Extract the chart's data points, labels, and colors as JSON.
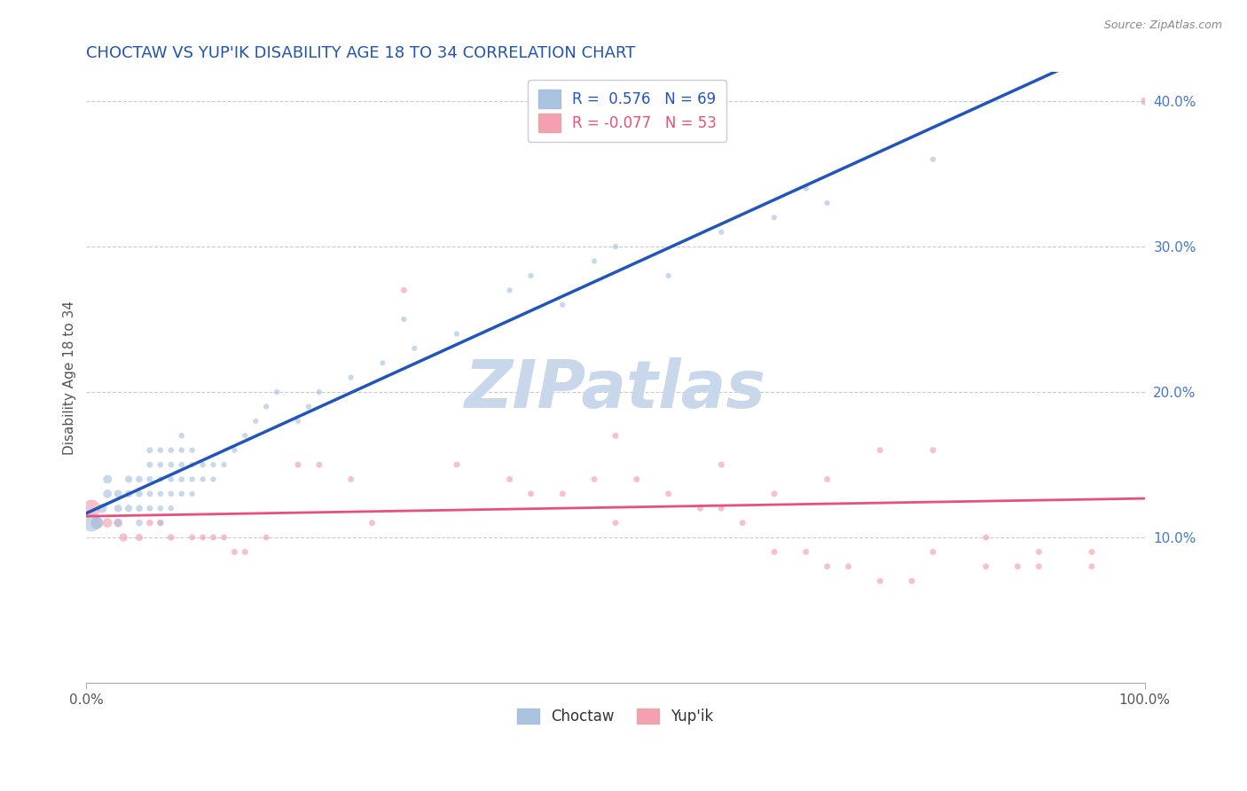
{
  "title": "CHOCTAW VS YUP'IK DISABILITY AGE 18 TO 34 CORRELATION CHART",
  "source_text": "Source: ZipAtlas.com",
  "ylabel": "Disability Age 18 to 34",
  "choctaw_R": 0.576,
  "choctaw_N": 69,
  "yupik_R": -0.077,
  "yupik_N": 53,
  "choctaw_color": "#a8c4e0",
  "yupik_color": "#f4a0b0",
  "choctaw_line_color": "#2255bb",
  "yupik_line_color": "#e8507a",
  "watermark_color": "#c8d8ea",
  "background_color": "#ffffff",
  "grid_color": "#cccccc",
  "title_color": "#2255aa",
  "right_label_color": "#4477cc",
  "legend_blue_label": "R =  0.576   N = 69",
  "legend_pink_label": "R = -0.077   N = 53",
  "choctaw_x": [
    0.5,
    1,
    1.5,
    2,
    2,
    3,
    3,
    3,
    4,
    4,
    4,
    5,
    5,
    5,
    5,
    6,
    6,
    6,
    6,
    6,
    7,
    7,
    7,
    7,
    7,
    7,
    8,
    8,
    8,
    8,
    8,
    9,
    9,
    9,
    9,
    9,
    10,
    10,
    10,
    10,
    11,
    11,
    12,
    12,
    13,
    14,
    15,
    16,
    17,
    18,
    20,
    21,
    22,
    25,
    28,
    30,
    31,
    35,
    40,
    42,
    45,
    48,
    50,
    55,
    60,
    65,
    68,
    70,
    80
  ],
  "choctaw_y": [
    11,
    11,
    12,
    13,
    14,
    11,
    12,
    13,
    12,
    13,
    14,
    11,
    12,
    13,
    14,
    12,
    13,
    14,
    15,
    16,
    11,
    12,
    13,
    14,
    15,
    16,
    12,
    13,
    14,
    15,
    16,
    13,
    14,
    15,
    16,
    17,
    13,
    14,
    15,
    16,
    14,
    15,
    14,
    15,
    15,
    16,
    17,
    18,
    19,
    20,
    18,
    19,
    20,
    21,
    22,
    25,
    23,
    24,
    27,
    28,
    26,
    29,
    30,
    28,
    31,
    32,
    34,
    33,
    36
  ],
  "yupik_x": [
    0.5,
    1,
    2,
    3,
    3.5,
    5,
    6,
    7,
    8,
    10,
    11,
    12,
    13,
    14,
    15,
    17,
    20,
    22,
    25,
    27,
    30,
    35,
    40,
    42,
    45,
    48,
    50,
    52,
    55,
    58,
    60,
    62,
    65,
    68,
    70,
    72,
    75,
    78,
    80,
    85,
    88,
    90,
    95,
    50,
    60,
    65,
    70,
    75,
    80,
    85,
    90,
    95,
    100
  ],
  "yupik_y": [
    12,
    11,
    11,
    11,
    10,
    10,
    11,
    11,
    10,
    10,
    10,
    10,
    10,
    9,
    9,
    10,
    15,
    15,
    14,
    11,
    27,
    15,
    14,
    13,
    13,
    14,
    17,
    14,
    13,
    12,
    12,
    11,
    9,
    9,
    8,
    8,
    7,
    7,
    16,
    8,
    8,
    9,
    9,
    11,
    15,
    13,
    14,
    16,
    9,
    10,
    8,
    8,
    40
  ],
  "choctaw_sizes": [
    200,
    100,
    60,
    50,
    50,
    40,
    40,
    40,
    35,
    35,
    35,
    30,
    30,
    30,
    30,
    25,
    25,
    25,
    25,
    25,
    22,
    22,
    22,
    22,
    22,
    22,
    22,
    22,
    22,
    22,
    22,
    22,
    22,
    22,
    22,
    22,
    20,
    20,
    20,
    20,
    20,
    20,
    20,
    20,
    20,
    20,
    20,
    20,
    20,
    20,
    20,
    20,
    20,
    20,
    20,
    20,
    20,
    20,
    20,
    20,
    20,
    20,
    20,
    20,
    20,
    20,
    20,
    20,
    20
  ],
  "yupik_sizes": [
    200,
    100,
    60,
    50,
    45,
    35,
    30,
    30,
    30,
    25,
    25,
    25,
    25,
    25,
    25,
    25,
    25,
    25,
    25,
    25,
    25,
    25,
    25,
    25,
    25,
    25,
    25,
    25,
    25,
    25,
    25,
    25,
    25,
    25,
    25,
    25,
    25,
    25,
    25,
    25,
    25,
    25,
    25,
    25,
    25,
    25,
    25,
    25,
    25,
    25,
    25,
    25,
    40
  ],
  "xlim": [
    0,
    100
  ],
  "ylim": [
    0,
    42
  ],
  "yticks_right": [
    10,
    20,
    30,
    40
  ],
  "ytick_labels_right": [
    "10.0%",
    "20.0%",
    "30.0%",
    "40.0%"
  ],
  "figsize": [
    14.06,
    8.92
  ],
  "dpi": 100
}
